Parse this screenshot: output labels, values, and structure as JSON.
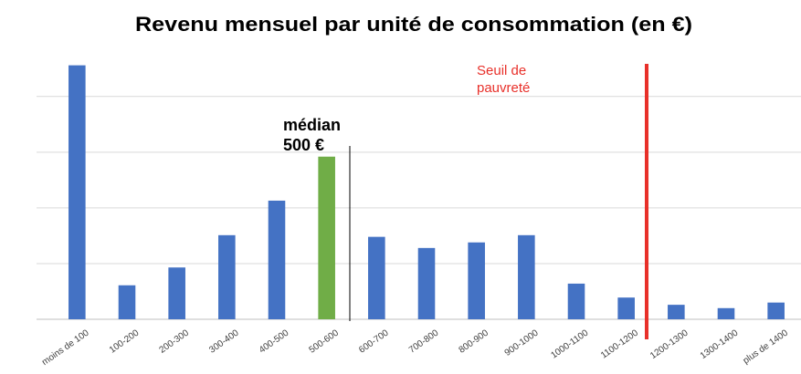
{
  "chart_data": {
    "type": "bar",
    "title": "Revenu mensuel par unité de consommation (en €)",
    "categories": [
      "moins de 100",
      "100-200",
      "200-300",
      "300-400",
      "400-500",
      "500-600",
      "600-700",
      "700-800",
      "800-900",
      "900-1000",
      "1000-1100",
      "1100-1200",
      "1200-1300",
      "1300-1400",
      "plus de 1400"
    ],
    "values": [
      4.56,
      0.61,
      0.93,
      1.51,
      2.13,
      2.92,
      1.48,
      1.28,
      1.38,
      1.51,
      0.64,
      0.39,
      0.26,
      0.2,
      0.3
    ],
    "colors": [
      "#4472c4",
      "#4472c4",
      "#4472c4",
      "#4472c4",
      "#4472c4",
      "#70ad47",
      "#4472c4",
      "#4472c4",
      "#4472c4",
      "#4472c4",
      "#4472c4",
      "#4472c4",
      "#4472c4",
      "#4472c4",
      "#4472c4"
    ],
    "ylim": [
      0,
      4.75
    ],
    "yticks": [
      0,
      1,
      2,
      3,
      4
    ],
    "grid": true,
    "annotations": [
      {
        "lines": [
          "médian",
          "500 €"
        ],
        "color": "#000000"
      },
      {
        "lines": [
          "Seuil de",
          "pauvreté"
        ],
        "color": "#e8302a"
      }
    ]
  }
}
